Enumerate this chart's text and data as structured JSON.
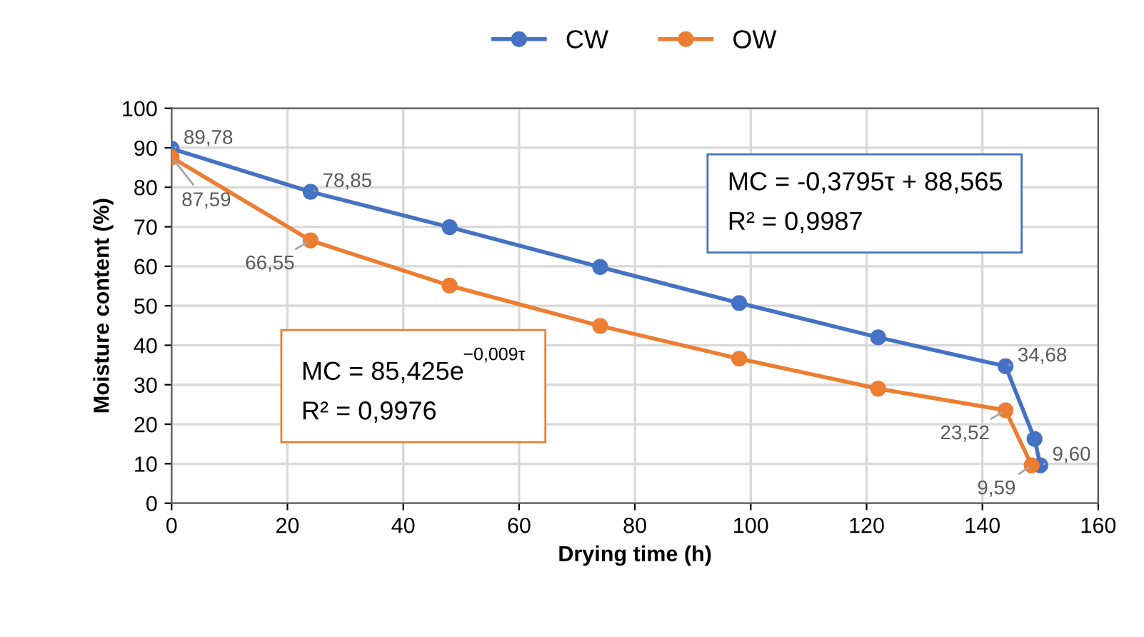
{
  "chart_data": {
    "type": "line",
    "xlabel": "Drying time (h)",
    "ylabel": "Moisture content (%)",
    "xlim": [
      0,
      160
    ],
    "xticks": [
      0,
      20,
      40,
      60,
      80,
      100,
      120,
      140,
      160
    ],
    "ylim": [
      0,
      100
    ],
    "yticks": [
      0,
      10,
      20,
      30,
      40,
      50,
      60,
      70,
      80,
      90,
      100
    ],
    "grid": true,
    "legend": "top",
    "marker": "circle",
    "line_style": "solid",
    "series": [
      {
        "name": "CW",
        "color": "#4472c4",
        "x": [
          0,
          24,
          48,
          74,
          98,
          122,
          144,
          149,
          150
        ],
        "values": [
          89.78,
          78.85,
          69.9,
          59.8,
          50.7,
          42.0,
          34.68,
          16.3,
          9.6
        ],
        "value_labels": [
          "89,78",
          "78,85",
          null,
          null,
          null,
          null,
          "34,68",
          null,
          "9,60"
        ]
      },
      {
        "name": "OW",
        "color": "#ed7d31",
        "x": [
          0,
          24,
          48,
          74,
          98,
          122,
          144,
          148.5
        ],
        "values": [
          87.59,
          66.55,
          55.1,
          44.9,
          36.6,
          29.0,
          23.52,
          9.59
        ],
        "value_labels": [
          "87,59",
          "66,55",
          null,
          null,
          null,
          null,
          "23,52",
          "9,59"
        ]
      }
    ],
    "annotations": [
      "MC = -0,3795τ + 88,565\nR² = 0,9987",
      "MC = 85,425e$^{−0,009τ}$\nR² = 0,9976"
    ]
  }
}
